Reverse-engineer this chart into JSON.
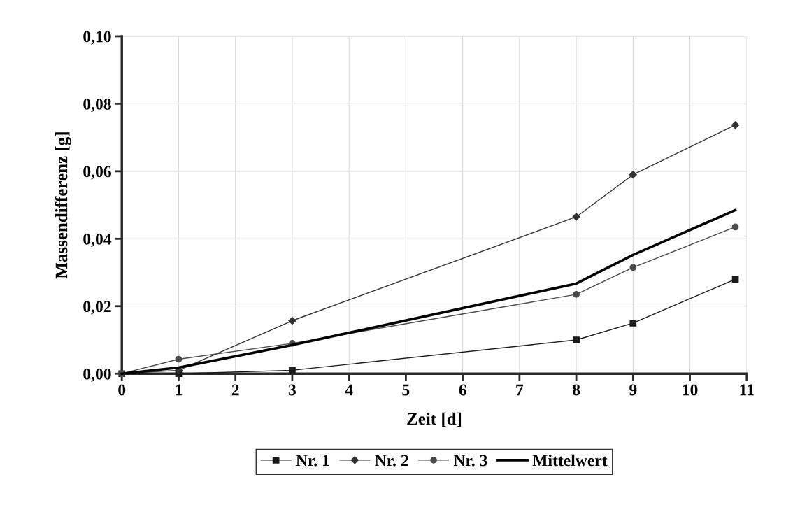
{
  "chart_data": {
    "type": "line",
    "xlabel": "Zeit [d]",
    "ylabel": "Massendifferenz [g]",
    "xlim": [
      0,
      11
    ],
    "xticks": [
      0,
      1,
      2,
      3,
      4,
      5,
      6,
      7,
      8,
      9,
      10,
      11
    ],
    "ylim": [
      0,
      0.1
    ],
    "yticks": [
      {
        "value": 0,
        "label": "0,00"
      },
      {
        "value": 0.02,
        "label": "0,02"
      },
      {
        "value": 0.04,
        "label": "0,04"
      },
      {
        "value": 0.06,
        "label": "0,06"
      },
      {
        "value": 0.08,
        "label": "0,08"
      },
      {
        "value": 0.1,
        "label": "0,10"
      }
    ],
    "grid": true,
    "legend": "bottom",
    "line_style": "solid",
    "series": [
      {
        "name": "Nr. 1",
        "color": "#1a1a1a",
        "marker": "square",
        "x": [
          0,
          1,
          3,
          8,
          9,
          10.8
        ],
        "values": [
          0,
          0,
          0.001,
          0.01,
          0.015,
          0.028
        ]
      },
      {
        "name": "Nr. 2",
        "color": "#333333",
        "marker": "diamond",
        "x": [
          0,
          1,
          3,
          8,
          9,
          10.8
        ],
        "values": [
          0,
          0.001,
          0.0157,
          0.0465,
          0.059,
          0.0737
        ]
      },
      {
        "name": "Nr. 3",
        "color": "#4a4a4a",
        "marker": "circle",
        "x": [
          0,
          1,
          3,
          8,
          9,
          10.8
        ],
        "values": [
          0,
          0.0043,
          0.009,
          0.0235,
          0.0315,
          0.0435
        ]
      },
      {
        "name": "Mittelwert",
        "color": "#000000",
        "marker": "none",
        "x": [
          0,
          1,
          3,
          8,
          9,
          10.8
        ],
        "values": [
          0,
          0.0018,
          0.0085,
          0.0267,
          0.0352,
          0.0485
        ]
      }
    ]
  }
}
